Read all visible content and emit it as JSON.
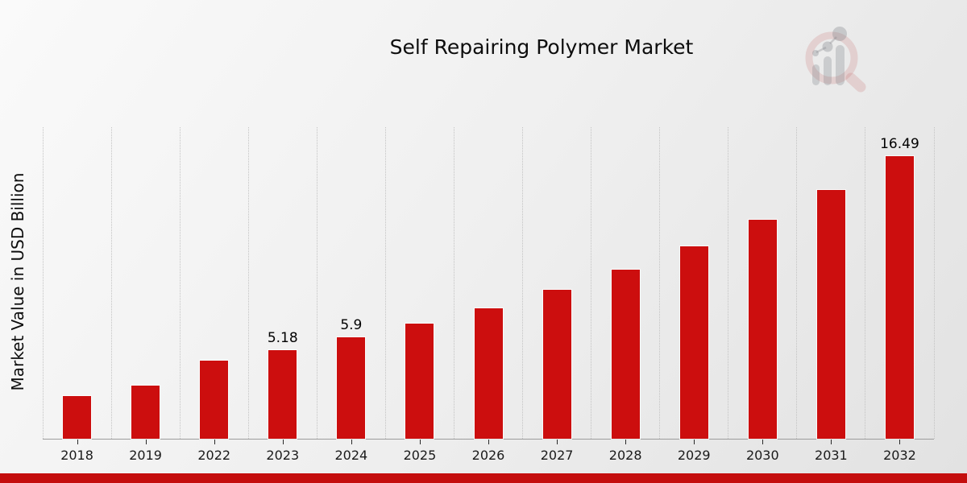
{
  "title": "Self Repairing Polymer Market",
  "y_axis_label": "Market Value in USD Billion",
  "logo": {
    "name": "market-research-magnifier-logo"
  },
  "colors": {
    "bar": "#cc0e0e",
    "footer_band": "#c40d0d",
    "grid": "#c3c3c3",
    "axis": "#9c9c9c",
    "text": "#111111"
  },
  "chart_data": {
    "type": "bar",
    "title": "Self Repairing Polymer Market",
    "xlabel": "",
    "ylabel": "Market Value in USD Billion",
    "categories": [
      "2018",
      "2019",
      "2022",
      "2023",
      "2024",
      "2025",
      "2026",
      "2027",
      "2028",
      "2029",
      "2030",
      "2031",
      "2032"
    ],
    "values": [
      2.5,
      3.08,
      4.55,
      5.18,
      5.9,
      6.71,
      7.63,
      8.67,
      9.86,
      11.21,
      12.75,
      14.5,
      16.49
    ],
    "annotations": {
      "2023": "5.18",
      "2024": "5.9",
      "2032": "16.49"
    },
    "ylim": [
      0,
      18.17
    ],
    "grid": "vertical-dotted",
    "legend": "none",
    "bar_color": "#cc0e0e"
  }
}
